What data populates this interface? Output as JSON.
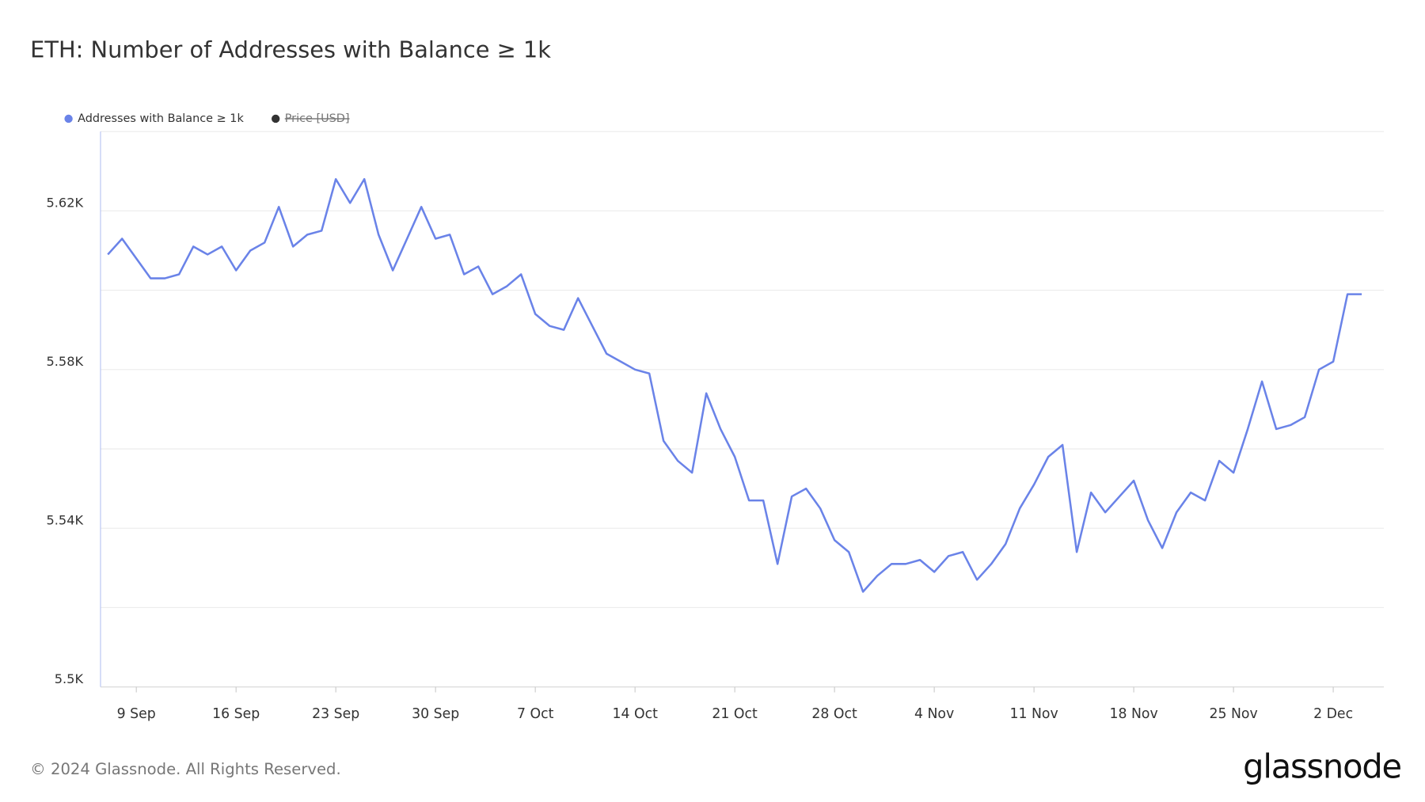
{
  "chart_data": {
    "type": "line",
    "title": "ETH: Number of Addresses with Balance ≥ 1k",
    "x": [
      "7 Sep",
      "8 Sep",
      "9 Sep",
      "10 Sep",
      "11 Sep",
      "12 Sep",
      "13 Sep",
      "14 Sep",
      "15 Sep",
      "16 Sep",
      "17 Sep",
      "18 Sep",
      "19 Sep",
      "20 Sep",
      "21 Sep",
      "22 Sep",
      "23 Sep",
      "24 Sep",
      "25 Sep",
      "26 Sep",
      "27 Sep",
      "28 Sep",
      "29 Sep",
      "30 Sep",
      "1 Oct",
      "2 Oct",
      "3 Oct",
      "4 Oct",
      "5 Oct",
      "6 Oct",
      "7 Oct",
      "8 Oct",
      "9 Oct",
      "10 Oct",
      "11 Oct",
      "12 Oct",
      "13 Oct",
      "14 Oct",
      "15 Oct",
      "16 Oct",
      "17 Oct",
      "18 Oct",
      "19 Oct",
      "20 Oct",
      "21 Oct",
      "22 Oct",
      "23 Oct",
      "24 Oct",
      "25 Oct",
      "26 Oct",
      "27 Oct",
      "28 Oct",
      "29 Oct",
      "30 Oct",
      "31 Oct",
      "1 Nov",
      "2 Nov",
      "3 Nov",
      "4 Nov",
      "5 Nov",
      "6 Nov",
      "7 Nov",
      "8 Nov",
      "9 Nov",
      "10 Nov",
      "11 Nov",
      "12 Nov",
      "13 Nov",
      "14 Nov",
      "15 Nov",
      "16 Nov",
      "17 Nov",
      "18 Nov",
      "19 Nov",
      "20 Nov",
      "21 Nov",
      "22 Nov",
      "23 Nov",
      "24 Nov",
      "25 Nov",
      "26 Nov",
      "27 Nov",
      "28 Nov",
      "29 Nov",
      "30 Nov",
      "1 Dec",
      "2 Dec",
      "3 Dec",
      "4 Dec"
    ],
    "series": [
      {
        "name": "Addresses with Balance ≥ 1k",
        "color": "#6a83e8",
        "values": [
          5609,
          5613,
          5608,
          5603,
          5603,
          5604,
          5611,
          5609,
          5611,
          5605,
          5610,
          5612,
          5621,
          5611,
          5614,
          5615,
          5628,
          5622,
          5628,
          5614,
          5605,
          5613,
          5621,
          5613,
          5614,
          5604,
          5606,
          5599,
          5601,
          5604,
          5594,
          5591,
          5590,
          5598,
          5591,
          5584,
          5582,
          5580,
          5579,
          5562,
          5557,
          5554,
          5574,
          5565,
          5558,
          5547,
          5547,
          5531,
          5548,
          5550,
          5545,
          5537,
          5534,
          5524,
          5528,
          5531,
          5531,
          5532,
          5529,
          5533,
          5534,
          5527,
          5531,
          5536,
          5545,
          5551,
          5558,
          5561,
          5534,
          5549,
          5544,
          5548,
          5552,
          5542,
          5535,
          5544,
          5549,
          5547,
          5557,
          5554,
          5565,
          5577,
          5565,
          5566,
          5568,
          5580,
          5582,
          5599,
          5599
        ]
      }
    ],
    "hidden_series": [
      {
        "name": "Price [USD]",
        "color": "#333333"
      }
    ],
    "ylim": [
      5500,
      5640
    ],
    "yticks": [
      {
        "value": 5500,
        "label": "5.5K"
      },
      {
        "value": 5540,
        "label": "5.54K"
      },
      {
        "value": 5580,
        "label": "5.58K"
      },
      {
        "value": 5620,
        "label": "5.62K"
      }
    ],
    "minor_grid": [
      5520,
      5560,
      5600,
      5640
    ],
    "xticks": [
      "9 Sep",
      "16 Sep",
      "23 Sep",
      "30 Sep",
      "7 Oct",
      "14 Oct",
      "21 Oct",
      "28 Oct",
      "4 Nov",
      "11 Nov",
      "18 Nov",
      "25 Nov",
      "2 Dec"
    ],
    "grid": true,
    "legend": "top-left"
  },
  "footer": {
    "copyright": "© 2024 Glassnode. All Rights Reserved.",
    "logo": "glassnode"
  }
}
